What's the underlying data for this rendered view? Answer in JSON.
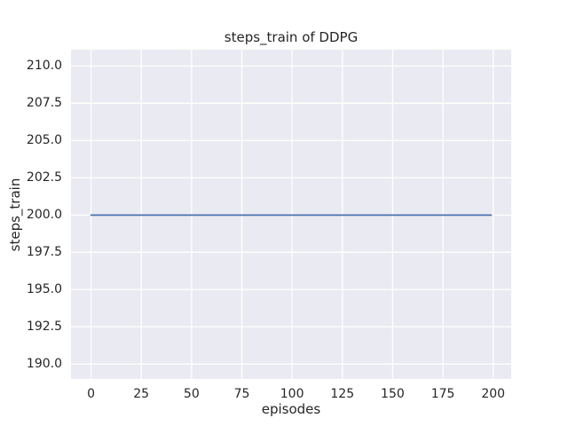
{
  "chart_data": {
    "type": "line",
    "title": "steps_train of DDPG",
    "xlabel": "episodes",
    "ylabel": "steps_train",
    "series": [
      {
        "name": "steps_train",
        "color": "#4C72B0",
        "x": [
          0,
          199
        ],
        "y": [
          200,
          200
        ],
        "note": "constant value 200 for every episode from 0 to 199"
      }
    ],
    "xlim": [
      -9.95,
      208.95
    ],
    "ylim": [
      189.0,
      211.1
    ],
    "xticks": [
      0,
      25,
      50,
      75,
      100,
      125,
      150,
      175,
      200
    ],
    "xtick_labels": [
      "0",
      "25",
      "50",
      "75",
      "100",
      "125",
      "150",
      "175",
      "200"
    ],
    "yticks": [
      190.0,
      192.5,
      195.0,
      197.5,
      200.0,
      202.5,
      205.0,
      207.5,
      210.0
    ],
    "ytick_labels": [
      "190.0",
      "192.5",
      "195.0",
      "197.5",
      "200.0",
      "202.5",
      "205.0",
      "207.5",
      "210.0"
    ],
    "grid": true,
    "legend": null,
    "style": {
      "figure_bg": "#FFFFFF",
      "axes_bg": "#EAEAF2",
      "grid_color": "#FFFFFF",
      "text_color": "#262626",
      "line_width": 1.8,
      "grid_width": 1.3
    }
  }
}
